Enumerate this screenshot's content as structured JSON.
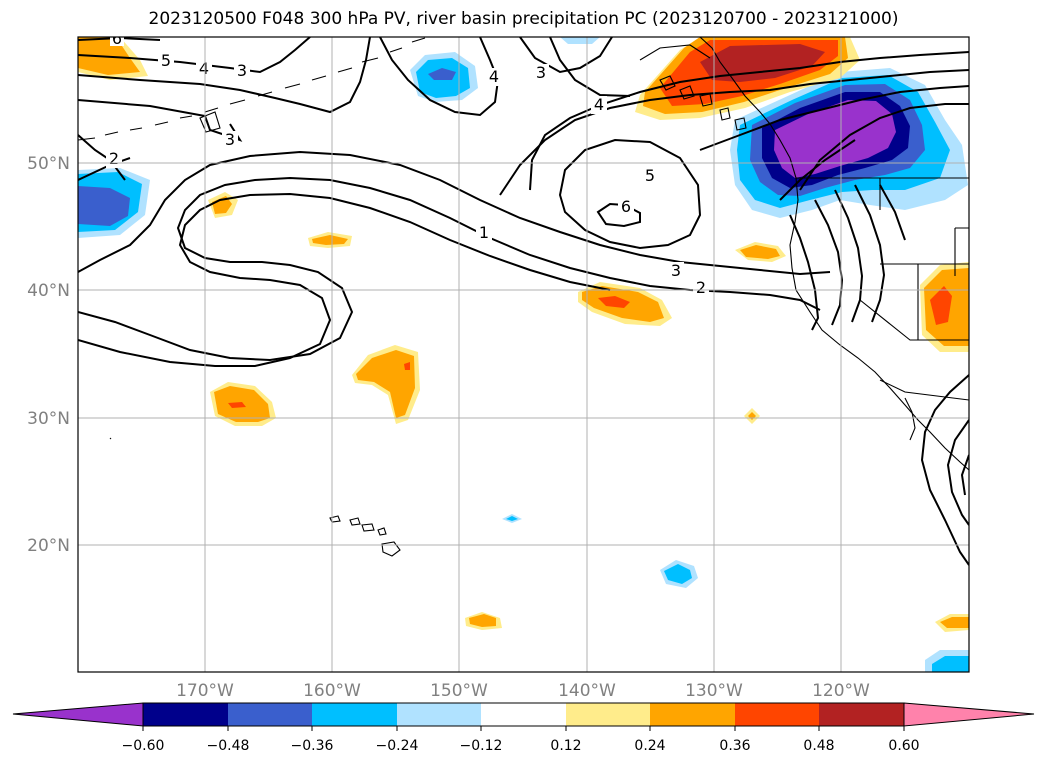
{
  "title": "2023120500 F048 300 hPa PV, river basin precipitation PC (2023120700 - 2023121000)",
  "lat_labels": [
    "20°N",
    "30°N",
    "40°N",
    "50°N"
  ],
  "lon_labels": [
    "170°W",
    "160°W",
    "150°W",
    "140°W",
    "130°W",
    "120°W"
  ],
  "colorbar": {
    "ticks": [
      "−0.60",
      "−0.48",
      "−0.36",
      "−0.24",
      "−0.12",
      "0.12",
      "0.24",
      "0.36",
      "0.48",
      "0.60"
    ],
    "colors": [
      "#9932cc",
      "#00008b",
      "#3a5fcd",
      "#00bfff",
      "#b0e2ff",
      "#ffffff",
      "#ffec8b",
      "#ffa500",
      "#ff4500",
      "#b22222",
      "#ff82ab"
    ]
  },
  "contour_labels": [
    {
      "text": "6"
    },
    {
      "text": "5"
    },
    {
      "text": "4"
    },
    {
      "text": "3"
    },
    {
      "text": "3"
    },
    {
      "text": "2"
    },
    {
      "text": "4"
    },
    {
      "text": "3"
    },
    {
      "text": "4"
    },
    {
      "text": "5"
    },
    {
      "text": "6"
    },
    {
      "text": "1"
    },
    {
      "text": "3"
    },
    {
      "text": "2"
    }
  ],
  "colors": {
    "contour": "#000000",
    "grid": "#b0b0b0",
    "axis_label": "#808080"
  }
}
